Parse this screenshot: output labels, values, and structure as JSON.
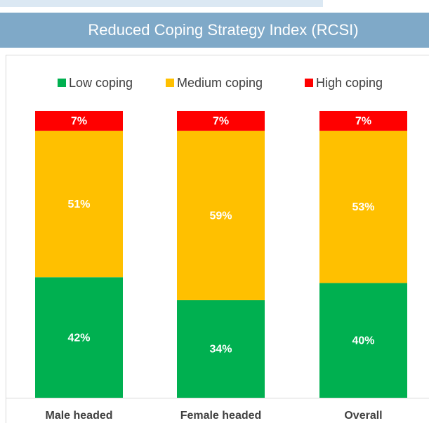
{
  "chart_data": {
    "type": "stacked_bar",
    "title": "Reduced Coping Strategy Index (RCSI)",
    "categories": [
      "Male headed",
      "Female headed",
      "Overall"
    ],
    "series": [
      {
        "name": "Low coping",
        "color": "#00b050",
        "values": [
          42,
          34,
          40
        ],
        "value_labels": [
          "42%",
          "34%",
          "40%"
        ]
      },
      {
        "name": "Medium coping",
        "color": "#ffc000",
        "values": [
          51,
          59,
          53
        ],
        "value_labels": [
          "51%",
          "59%",
          "53%"
        ]
      },
      {
        "name": "High coping",
        "color": "#ff0000",
        "values": [
          7,
          7,
          7
        ],
        "value_labels": [
          "7%",
          "7%",
          "7%"
        ]
      }
    ],
    "ylim": [
      0,
      100
    ],
    "legend": "top"
  }
}
